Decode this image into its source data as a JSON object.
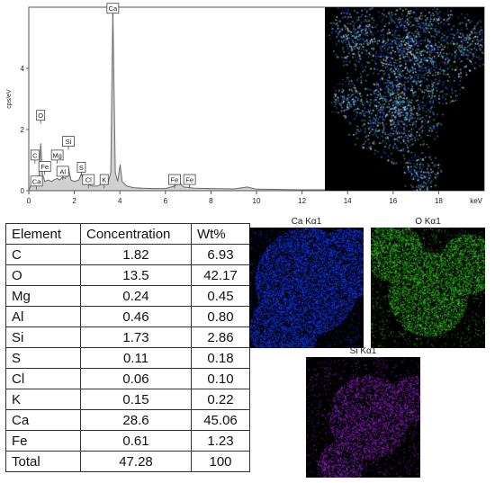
{
  "chart_data": [
    {
      "type": "line",
      "ylabel": "cps/eV",
      "xunit": "keV",
      "xlim": [
        0,
        20
      ],
      "ylim": [
        0,
        6
      ],
      "xticks": [
        "0",
        "2",
        "4",
        "6",
        "8",
        "10",
        "12",
        "14",
        "16",
        "18"
      ],
      "yticks": [
        "0",
        "2",
        "4"
      ],
      "grid": false,
      "series": [
        {
          "x": [
            0.0,
            0.1,
            0.2,
            0.27,
            0.35,
            0.45,
            0.52,
            0.6,
            0.7,
            0.85,
            1.0,
            1.1,
            1.25,
            1.35,
            1.49,
            1.6,
            1.74,
            1.85,
            2.0,
            2.2,
            2.31,
            2.45,
            2.62,
            2.8,
            3.0,
            3.31,
            3.5,
            3.6,
            3.69,
            3.8,
            3.9,
            4.01,
            4.1,
            4.3,
            4.6,
            5.0,
            5.5,
            6.0,
            6.4,
            6.6,
            6.8,
            7.06,
            7.3,
            8.0,
            9.0,
            9.6,
            10.0,
            11.0,
            12.0,
            13.0
          ],
          "y": [
            0.0,
            0.2,
            0.35,
            0.45,
            0.3,
            0.5,
            1.55,
            0.55,
            0.3,
            0.35,
            0.3,
            0.35,
            0.4,
            0.35,
            0.45,
            0.4,
            0.75,
            0.35,
            0.3,
            0.35,
            0.55,
            0.3,
            0.2,
            0.15,
            0.15,
            0.25,
            0.3,
            0.6,
            5.95,
            0.6,
            0.3,
            0.85,
            0.3,
            0.15,
            0.1,
            0.08,
            0.07,
            0.07,
            0.15,
            0.28,
            0.12,
            0.1,
            0.08,
            0.07,
            0.06,
            0.12,
            0.05,
            0.04,
            0.03,
            0.03
          ]
        }
      ],
      "peak_labels": [
        {
          "label": "Ca",
          "x": 3.69,
          "y": 5.95
        },
        {
          "label": "O",
          "x": 0.52,
          "y": 2.45
        },
        {
          "label": "Si",
          "x": 1.74,
          "y": 1.6
        },
        {
          "label": "Mg",
          "x": 1.25,
          "y": 1.15
        },
        {
          "label": "C",
          "x": 0.27,
          "y": 1.15
        },
        {
          "label": "Fe",
          "x": 0.7,
          "y": 0.78
        },
        {
          "label": "Al",
          "x": 1.49,
          "y": 0.62
        },
        {
          "label": "S",
          "x": 2.31,
          "y": 0.75
        },
        {
          "label": "Ca",
          "x": 0.34,
          "y": 0.3
        },
        {
          "label": "Cl",
          "x": 2.62,
          "y": 0.35
        },
        {
          "label": "K",
          "x": 3.31,
          "y": 0.35
        },
        {
          "label": "Fe",
          "x": 6.4,
          "y": 0.35
        },
        {
          "label": "Fe",
          "x": 7.06,
          "y": 0.35
        }
      ]
    },
    {
      "type": "table",
      "columns": [
        "Element",
        "Concentration",
        "Wt%"
      ],
      "rows": [
        [
          "C",
          "1.82",
          "6.93"
        ],
        [
          "O",
          "13.5",
          "42.17"
        ],
        [
          "Mg",
          "0.24",
          "0.45"
        ],
        [
          "Al",
          "0.46",
          "0.80"
        ],
        [
          "Si",
          "1.73",
          "2.86"
        ],
        [
          "S",
          "0.11",
          "0.18"
        ],
        [
          "Cl",
          "0.06",
          "0.10"
        ],
        [
          "K",
          "0.15",
          "0.22"
        ],
        [
          "Ca",
          "28.6",
          "45.06"
        ],
        [
          "Fe",
          "0.61",
          "1.23"
        ],
        [
          "Total",
          "47.28",
          "100"
        ]
      ]
    }
  ],
  "maps": [
    {
      "title": "Ca Kα1",
      "color": "#1a3cff"
    },
    {
      "title": "O Kα1",
      "color": "#3fdc2a"
    },
    {
      "title": "Si Kα1",
      "color": "#9b2ed6"
    }
  ],
  "overlay_colors": [
    "#2a4bd8",
    "#3fb8c8",
    "#d8e4ec"
  ]
}
